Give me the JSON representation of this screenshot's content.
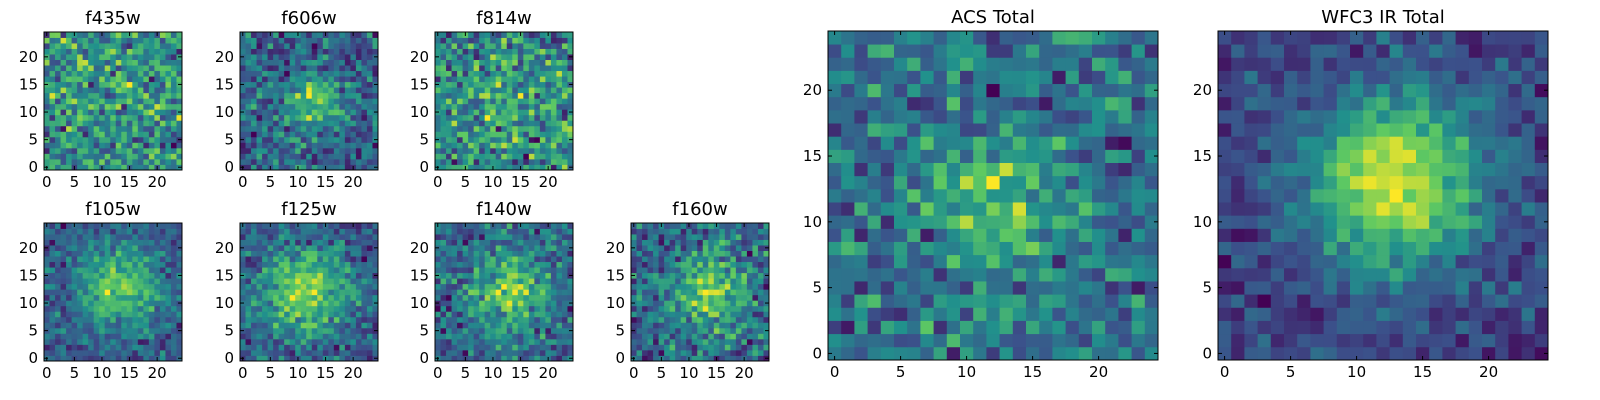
{
  "chart_data": [
    {
      "type": "heatmap",
      "title": "f435w",
      "xticks": [
        0,
        5,
        10,
        15,
        20
      ],
      "yticks": [
        0,
        5,
        10,
        15,
        20
      ],
      "xlim": [
        0,
        24
      ],
      "ylim": [
        0,
        24
      ],
      "grid_size": 25,
      "source_peak": {
        "x": 12,
        "y": 12,
        "strength": 0.05,
        "width": 4
      },
      "noise": 0.85,
      "seed": 11
    },
    {
      "type": "heatmap",
      "title": "f606w",
      "xticks": [
        0,
        5,
        10,
        15,
        20
      ],
      "yticks": [
        0,
        5,
        10,
        15,
        20
      ],
      "xlim": [
        0,
        24
      ],
      "ylim": [
        0,
        24
      ],
      "grid_size": 25,
      "source_peak": {
        "x": 13,
        "y": 12,
        "strength": 0.35,
        "width": 3.5
      },
      "noise": 0.75,
      "seed": 23
    },
    {
      "type": "heatmap",
      "title": "f814w",
      "xticks": [
        0,
        5,
        10,
        15,
        20
      ],
      "yticks": [
        0,
        5,
        10,
        15,
        20
      ],
      "xlim": [
        0,
        24
      ],
      "ylim": [
        0,
        24
      ],
      "grid_size": 25,
      "source_peak": {
        "x": 12,
        "y": 12,
        "strength": 0.1,
        "width": 4
      },
      "noise": 0.85,
      "seed": 37
    },
    {
      "type": "heatmap",
      "title": "f105w",
      "xticks": [
        0,
        5,
        10,
        15,
        20
      ],
      "yticks": [
        0,
        5,
        10,
        15,
        20
      ],
      "xlim": [
        0,
        24
      ],
      "ylim": [
        0,
        24
      ],
      "grid_size": 25,
      "source_peak": {
        "x": 13,
        "y": 13,
        "strength": 0.45,
        "width": 5
      },
      "noise": 0.6,
      "seed": 41
    },
    {
      "type": "heatmap",
      "title": "f125w",
      "xticks": [
        0,
        5,
        10,
        15,
        20
      ],
      "yticks": [
        0,
        5,
        10,
        15,
        20
      ],
      "xlim": [
        0,
        24
      ],
      "ylim": [
        0,
        24
      ],
      "grid_size": 25,
      "source_peak": {
        "x": 11,
        "y": 12,
        "strength": 0.45,
        "width": 5.5
      },
      "noise": 0.6,
      "seed": 53
    },
    {
      "type": "heatmap",
      "title": "f140w",
      "xticks": [
        0,
        5,
        10,
        15,
        20
      ],
      "yticks": [
        0,
        5,
        10,
        15,
        20
      ],
      "xlim": [
        0,
        24
      ],
      "ylim": [
        0,
        24
      ],
      "grid_size": 25,
      "source_peak": {
        "x": 13,
        "y": 12,
        "strength": 0.35,
        "width": 5
      },
      "noise": 0.65,
      "seed": 67
    },
    {
      "type": "heatmap",
      "title": "f160w",
      "xticks": [
        0,
        5,
        10,
        15,
        20
      ],
      "yticks": [
        0,
        5,
        10,
        15,
        20
      ],
      "xlim": [
        0,
        24
      ],
      "ylim": [
        0,
        24
      ],
      "grid_size": 25,
      "source_peak": {
        "x": 14,
        "y": 12,
        "strength": 0.35,
        "width": 4.5
      },
      "noise": 0.7,
      "seed": 79
    },
    {
      "type": "heatmap",
      "title": "ACS Total",
      "xticks": [
        0,
        5,
        10,
        15,
        20
      ],
      "yticks": [
        0,
        5,
        10,
        15,
        20
      ],
      "xlim": [
        0,
        24
      ],
      "ylim": [
        0,
        24
      ],
      "grid_size": 25,
      "source_peak": {
        "x": 12,
        "y": 11,
        "strength": 0.3,
        "width": 3.5
      },
      "noise": 0.7,
      "seed": 97
    },
    {
      "type": "heatmap",
      "title": "WFC3 IR Total",
      "xticks": [
        0,
        5,
        10,
        15,
        20
      ],
      "yticks": [
        0,
        5,
        10,
        15,
        20
      ],
      "xlim": [
        0,
        24
      ],
      "ylim": [
        0,
        24
      ],
      "grid_size": 25,
      "source_peak": {
        "x": 13,
        "y": 13,
        "strength": 0.7,
        "width": 4.5
      },
      "noise": 0.45,
      "seed": 113
    }
  ],
  "colormap": [
    "#440154",
    "#3b528b",
    "#21918c",
    "#5ec962",
    "#fde725"
  ]
}
